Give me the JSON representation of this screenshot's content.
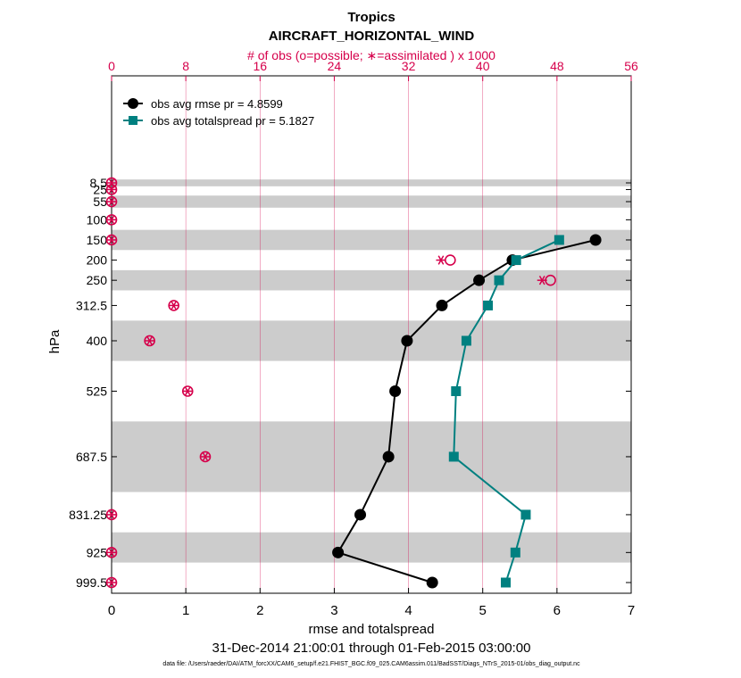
{
  "chart_data": {
    "type": "line",
    "title": "Tropics",
    "subtitle": "AIRCRAFT_HORIZONTAL_WIND",
    "top_axis_label": "# of obs (o=possible; ∗=assimilated ) x 1000",
    "xlabel": "rmse and totalspread",
    "ylabel": "hPa",
    "date_range": "31-Dec-2014 21:00:01 through 01-Feb-2015 03:00:00",
    "footnote": "data file: /Users/raeder/DAI/ATM_forcXX/CAM6_setup/f.e21.FHIST_BGC.f09_025.CAM6assim.011/BadSST/Diags_NTrS_2015-01/obs_diag_output.nc",
    "xlim": [
      0,
      7
    ],
    "top_xlim": [
      0,
      56
    ],
    "x_ticks": [
      0,
      1,
      2,
      3,
      4,
      5,
      6,
      7
    ],
    "top_x_ticks": [
      0,
      8,
      16,
      24,
      32,
      40,
      48,
      56
    ],
    "levels": [
      "8.5",
      "25",
      "55",
      "100",
      "150",
      "200",
      "250",
      "312.5",
      "400",
      "525",
      "687.5",
      "831.25",
      "925",
      "999.5"
    ],
    "level_values": [
      8.5,
      25,
      55,
      100,
      150,
      200,
      250,
      312.5,
      400,
      525,
      687.5,
      831.25,
      925,
      999.5
    ],
    "shaded_bands_hPa": [
      [
        0,
        17
      ],
      [
        40,
        70
      ],
      [
        125,
        175
      ],
      [
        225,
        275
      ],
      [
        350,
        450
      ],
      [
        600,
        775
      ],
      [
        875,
        950
      ]
    ],
    "series": [
      {
        "name": "obs avg rmse",
        "legend": "obs avg rmse pr = 4.8599",
        "color": "#000000",
        "marker": "circle",
        "points": [
          [
            6.52,
            150
          ],
          [
            5.4,
            200
          ],
          [
            4.95,
            250
          ],
          [
            4.45,
            312.5
          ],
          [
            3.98,
            400
          ],
          [
            3.82,
            525
          ],
          [
            3.73,
            687.5
          ],
          [
            3.35,
            831.25
          ],
          [
            3.05,
            925
          ],
          [
            4.32,
            999.5
          ]
        ]
      },
      {
        "name": "obs avg totalspread",
        "legend": "obs avg totalspread pr = 5.1827",
        "color": "#008080",
        "marker": "square",
        "points": [
          [
            6.03,
            150
          ],
          [
            5.45,
            200
          ],
          [
            5.22,
            250
          ],
          [
            5.07,
            312.5
          ],
          [
            4.78,
            400
          ],
          [
            4.64,
            525
          ],
          [
            4.61,
            687.5
          ],
          [
            5.58,
            831.25
          ],
          [
            5.44,
            925
          ],
          [
            5.31,
            999.5
          ]
        ]
      }
    ],
    "obs_counts": {
      "color": "#d6004b",
      "units": "x 1000",
      "possible": [
        [
          0,
          8.5
        ],
        [
          0,
          25
        ],
        [
          0,
          55
        ],
        [
          0,
          100
        ],
        [
          0,
          150
        ],
        [
          36.5,
          200
        ],
        [
          47.3,
          250
        ],
        [
          6.7,
          312.5
        ],
        [
          4.1,
          400
        ],
        [
          8.2,
          525
        ],
        [
          10.1,
          687.5
        ],
        [
          0,
          831.25
        ],
        [
          0,
          925
        ],
        [
          0,
          999.5
        ]
      ],
      "assimilated": [
        [
          0,
          8.5
        ],
        [
          0,
          25
        ],
        [
          0,
          55
        ],
        [
          0,
          100
        ],
        [
          0,
          150
        ],
        [
          35.5,
          200
        ],
        [
          46.4,
          250
        ],
        [
          6.7,
          312.5
        ],
        [
          4.1,
          400
        ],
        [
          8.2,
          525
        ],
        [
          10.1,
          687.5
        ],
        [
          0,
          831.25
        ],
        [
          0,
          925
        ],
        [
          0,
          999.5
        ]
      ]
    }
  }
}
